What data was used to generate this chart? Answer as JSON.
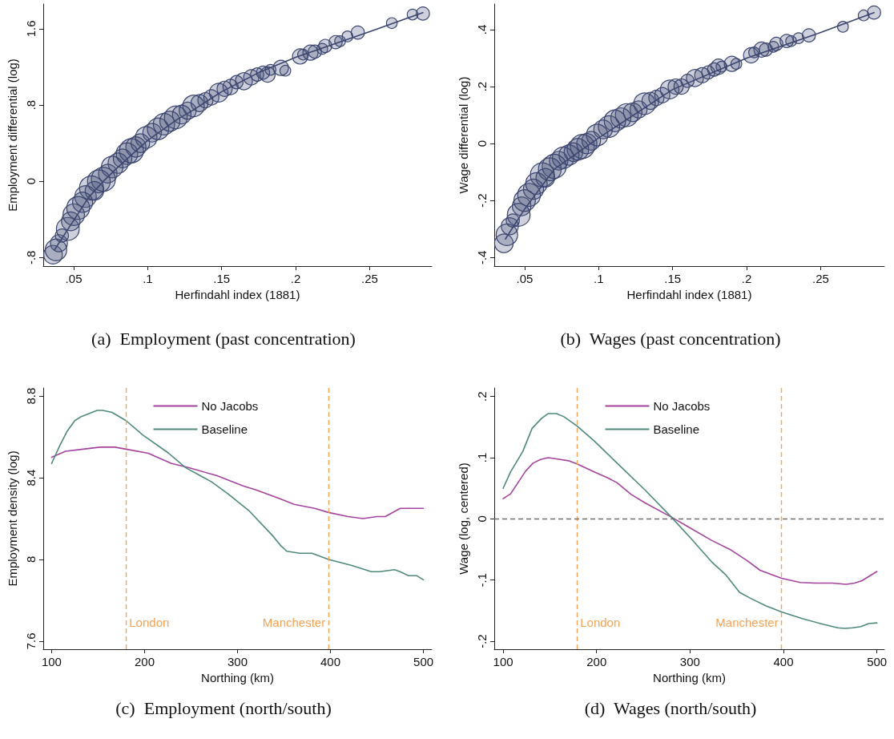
{
  "chart_data": [
    {
      "type": "bubble",
      "title": "(a)  Employment (past concentration)",
      "xlabel": "Herfindahl index (1881)",
      "ylabel": "Employment differential (log)",
      "xlim": [
        0.0294,
        0.292
      ],
      "ylim": [
        -0.89,
        1.86
      ],
      "xticks": [
        {
          "value": 0.05,
          "label": ".05"
        },
        {
          "value": 0.1,
          "label": ".1"
        },
        {
          "value": 0.15,
          "label": ".15"
        },
        {
          "value": 0.2,
          "label": ".2"
        },
        {
          "value": 0.25,
          "label": ".25"
        }
      ],
      "yticks": [
        {
          "value": -0.8,
          "label": "-.8"
        },
        0,
        {
          "value": 0.8,
          "label": ".8"
        },
        1.6
      ],
      "series": [
        {
          "color": "#3c4670",
          "x": [
            0.036,
            0.038,
            0.04,
            0.042,
            0.046,
            0.048,
            0.05,
            0.053,
            0.056,
            0.058,
            0.062,
            0.064,
            0.067,
            0.07,
            0.073,
            0.076,
            0.08,
            0.083,
            0.086,
            0.089,
            0.092,
            0.095,
            0.099,
            0.103,
            0.107,
            0.111,
            0.115,
            0.119,
            0.123,
            0.127,
            0.131,
            0.135,
            0.139,
            0.143,
            0.148,
            0.152,
            0.156,
            0.16,
            0.165,
            0.17,
            0.174,
            0.178,
            0.181,
            0.183,
            0.19,
            0.193,
            0.203,
            0.205,
            0.21,
            0.213,
            0.218,
            0.22,
            0.227,
            0.23,
            0.235,
            0.242,
            0.265,
            0.279,
            0.286
          ],
          "values": [
            -0.77,
            -0.72,
            -0.65,
            -0.57,
            -0.5,
            -0.42,
            -0.35,
            -0.28,
            -0.22,
            -0.16,
            -0.07,
            -0.1,
            0.0,
            0.02,
            0.08,
            0.15,
            0.19,
            0.24,
            0.29,
            0.32,
            0.36,
            0.4,
            0.46,
            0.51,
            0.55,
            0.6,
            0.63,
            0.67,
            0.7,
            0.74,
            0.79,
            0.82,
            0.85,
            0.88,
            0.93,
            0.97,
            0.99,
            1.04,
            1.05,
            1.09,
            1.12,
            1.14,
            1.12,
            1.17,
            1.19,
            1.16,
            1.31,
            1.33,
            1.35,
            1.36,
            1.39,
            1.42,
            1.46,
            1.47,
            1.52,
            1.56,
            1.66,
            1.75,
            1.76
          ],
          "sizes": [
            0.6,
            0.8,
            0.5,
            0.3,
            0.9,
            0.6,
            0.8,
            0.9,
            0.7,
            0.8,
            1.0,
            0.6,
            0.9,
            1.0,
            0.6,
            0.8,
            0.7,
            0.6,
            0.8,
            1.0,
            0.7,
            0.6,
            0.8,
            0.6,
            0.8,
            0.8,
            0.7,
            0.9,
            0.6,
            0.5,
            0.8,
            0.5,
            0.4,
            0.4,
            0.6,
            0.4,
            0.4,
            0.3,
            0.5,
            0.4,
            0.3,
            0.3,
            0.4,
            0.2,
            0.4,
            0.2,
            0.4,
            0.2,
            0.4,
            0.3,
            0.2,
            0.3,
            0.3,
            0.2,
            0.2,
            0.3,
            0.2,
            0.2,
            0.3
          ]
        },
        {
          "type": "line",
          "color": "#3c4670",
          "x": [
            0.037,
            0.05,
            0.06,
            0.07,
            0.08,
            0.1,
            0.12,
            0.13,
            0.15,
            0.175,
            0.2,
            0.25,
            0.286
          ],
          "values": [
            -0.72,
            -0.41,
            -0.17,
            0.0,
            0.15,
            0.43,
            0.65,
            0.74,
            0.94,
            1.14,
            1.3,
            1.57,
            1.77
          ]
        }
      ]
    },
    {
      "type": "bubble",
      "title": "(b)  Wages (past concentration)",
      "xlabel": "Herfindahl index (1881)",
      "ylabel": "Wage differential (log)",
      "xlim": [
        0.0295,
        0.293
      ],
      "ylim": [
        -0.43,
        0.49
      ],
      "xticks": [
        {
          "value": 0.05,
          "label": ".05"
        },
        {
          "value": 0.1,
          "label": ".1"
        },
        {
          "value": 0.15,
          "label": ".15"
        },
        {
          "value": 0.2,
          "label": ".2"
        },
        {
          "value": 0.25,
          "label": ".25"
        }
      ],
      "yticks": [
        {
          "value": -0.4,
          "label": "-.4"
        },
        {
          "value": -0.2,
          "label": "-.2"
        },
        0,
        {
          "value": 0.2,
          "label": ".2"
        },
        {
          "value": 0.4,
          "label": ".4"
        }
      ],
      "series": [
        {
          "color": "#3c4670",
          "x": [
            0.036,
            0.038,
            0.04,
            0.042,
            0.046,
            0.048,
            0.05,
            0.053,
            0.056,
            0.058,
            0.062,
            0.064,
            0.067,
            0.07,
            0.073,
            0.076,
            0.08,
            0.083,
            0.086,
            0.089,
            0.092,
            0.095,
            0.099,
            0.103,
            0.107,
            0.111,
            0.115,
            0.119,
            0.123,
            0.127,
            0.131,
            0.135,
            0.139,
            0.143,
            0.148,
            0.152,
            0.156,
            0.16,
            0.165,
            0.17,
            0.174,
            0.178,
            0.181,
            0.183,
            0.19,
            0.193,
            0.203,
            0.205,
            0.21,
            0.213,
            0.218,
            0.22,
            0.227,
            0.23,
            0.235,
            0.242,
            0.265,
            0.279,
            0.286
          ],
          "values": [
            -0.35,
            -0.32,
            -0.29,
            -0.27,
            -0.25,
            -0.22,
            -0.2,
            -0.18,
            -0.16,
            -0.14,
            -0.11,
            -0.12,
            -0.09,
            -0.08,
            -0.06,
            -0.05,
            -0.04,
            -0.03,
            -0.02,
            -0.01,
            0.0,
            0.01,
            0.03,
            0.05,
            0.06,
            0.08,
            0.09,
            0.1,
            0.11,
            0.12,
            0.14,
            0.15,
            0.16,
            0.17,
            0.19,
            0.2,
            0.2,
            0.22,
            0.23,
            0.24,
            0.25,
            0.26,
            0.27,
            0.27,
            0.28,
            0.28,
            0.31,
            0.32,
            0.33,
            0.33,
            0.34,
            0.35,
            0.36,
            0.36,
            0.37,
            0.38,
            0.41,
            0.45,
            0.46
          ],
          "sizes": [
            0.6,
            0.8,
            0.5,
            0.3,
            0.9,
            0.6,
            0.8,
            0.9,
            0.7,
            0.8,
            1.0,
            0.6,
            0.9,
            1.0,
            0.6,
            0.8,
            0.7,
            0.6,
            0.8,
            1.0,
            0.7,
            0.6,
            0.8,
            0.6,
            0.8,
            0.8,
            0.7,
            0.9,
            0.6,
            0.5,
            0.8,
            0.5,
            0.4,
            0.4,
            0.6,
            0.4,
            0.4,
            0.3,
            0.5,
            0.4,
            0.3,
            0.3,
            0.4,
            0.2,
            0.4,
            0.2,
            0.4,
            0.2,
            0.4,
            0.3,
            0.2,
            0.3,
            0.3,
            0.2,
            0.2,
            0.3,
            0.2,
            0.2,
            0.3
          ]
        },
        {
          "type": "line",
          "color": "#3c4670",
          "x": [
            0.037,
            0.05,
            0.07,
            0.1,
            0.15,
            0.2,
            0.25,
            0.286
          ],
          "values": [
            -0.335,
            -0.23,
            -0.09,
            0.02,
            0.19,
            0.3,
            0.39,
            0.46
          ]
        }
      ]
    },
    {
      "type": "line",
      "title": "(c)  Employment (north/south)",
      "xlabel": "Northing (km)",
      "ylabel": "Employment density (log)",
      "xlim": [
        91,
        509
      ],
      "ylim": [
        7.56,
        8.84
      ],
      "xticks": [
        100,
        200,
        300,
        400,
        500
      ],
      "yticks": [
        7.6,
        8,
        8.4,
        8.8
      ],
      "legend": "top",
      "ref_lines": [
        {
          "axis": "x",
          "value": 180,
          "label": "London",
          "color": "#f8a253",
          "line_style": "dashed"
        },
        {
          "axis": "x",
          "value": 398,
          "label": "Manchester",
          "color": "#f8a253",
          "line_style": "dashed"
        }
      ],
      "series": [
        {
          "name": "No Jacobs",
          "color": "#a4449e",
          "x": [
            100,
            115,
            134,
            152,
            168,
            180,
            204,
            229,
            247,
            278,
            306,
            320,
            344,
            361,
            383,
            398,
            419,
            435,
            450,
            459,
            475,
            484,
            500
          ],
          "values": [
            8.5,
            8.53,
            8.54,
            8.55,
            8.55,
            8.54,
            8.52,
            8.47,
            8.45,
            8.41,
            8.36,
            8.34,
            8.3,
            8.27,
            8.25,
            8.23,
            8.21,
            8.2,
            8.21,
            8.21,
            8.25,
            8.25,
            8.25
          ]
        },
        {
          "name": "Baseline",
          "color": "#4e8a7c",
          "x": [
            100,
            109,
            117,
            125,
            132,
            149,
            155,
            165,
            180,
            198,
            226,
            244,
            272,
            290,
            312,
            337,
            346,
            353,
            367,
            380,
            398,
            423,
            444,
            453,
            469,
            475,
            484,
            493,
            500
          ],
          "values": [
            8.47,
            8.56,
            8.63,
            8.68,
            8.7,
            8.73,
            8.73,
            8.72,
            8.68,
            8.61,
            8.52,
            8.45,
            8.38,
            8.32,
            8.24,
            8.12,
            8.07,
            8.04,
            8.03,
            8.03,
            8.0,
            7.97,
            7.94,
            7.94,
            7.95,
            7.94,
            7.92,
            7.92,
            7.9
          ]
        }
      ]
    },
    {
      "type": "line",
      "title": "(d)  Wages (north/south)",
      "xlabel": "Northing (km)",
      "ylabel": "Wage (log, centered)",
      "xlim": [
        90.5,
        508
      ],
      "ylim": [
        -0.213,
        0.214
      ],
      "xticks": [
        100,
        200,
        300,
        400,
        500
      ],
      "yticks": [
        {
          "value": -0.2,
          "label": "-.2"
        },
        {
          "value": -0.1,
          "label": "-.1"
        },
        0,
        {
          "value": 0.1,
          "label": ".1"
        },
        {
          "value": 0.2,
          "label": ".2"
        }
      ],
      "legend": "top",
      "ref_lines": [
        {
          "axis": "x",
          "value": 179,
          "label": "London",
          "color": "#f8a253",
          "line_style": "dashed"
        },
        {
          "axis": "x",
          "value": 398,
          "label": "Manchester",
          "color": "#f8a253",
          "line_style": "dashed"
        },
        {
          "axis": "y",
          "value": 0,
          "color": "#707070",
          "line_style": "dashed"
        }
      ],
      "series": [
        {
          "name": "No Jacobs",
          "color": "#a4449e",
          "x": [
            100,
            108,
            124,
            132,
            140,
            148,
            157,
            170,
            179,
            197,
            212,
            222,
            237,
            252,
            280,
            298,
            323,
            344,
            361,
            375,
            387,
            398,
            418,
            436,
            452,
            467,
            476,
            484,
            500
          ],
          "values": [
            0.033,
            0.041,
            0.078,
            0.091,
            0.097,
            0.1,
            0.098,
            0.095,
            0.09,
            0.077,
            0.067,
            0.059,
            0.04,
            0.026,
            0.003,
            -0.013,
            -0.035,
            -0.051,
            -0.068,
            -0.084,
            -0.091,
            -0.097,
            -0.104,
            -0.105,
            -0.105,
            -0.107,
            -0.105,
            -0.101,
            -0.086
          ]
        },
        {
          "name": "Baseline",
          "color": "#4e8a7c",
          "x": [
            100,
            108,
            121,
            131,
            141,
            148,
            157,
            165,
            179,
            197,
            222,
            252,
            280,
            301,
            323,
            338,
            353,
            365,
            381,
            398,
            420,
            442,
            458,
            466,
            474,
            483,
            491,
            500
          ],
          "values": [
            0.05,
            0.077,
            0.11,
            0.148,
            0.164,
            0.172,
            0.172,
            0.167,
            0.152,
            0.128,
            0.091,
            0.047,
            0.003,
            -0.032,
            -0.07,
            -0.091,
            -0.12,
            -0.13,
            -0.142,
            -0.152,
            -0.163,
            -0.172,
            -0.178,
            -0.179,
            -0.178,
            -0.176,
            -0.171,
            -0.17
          ]
        }
      ]
    }
  ]
}
